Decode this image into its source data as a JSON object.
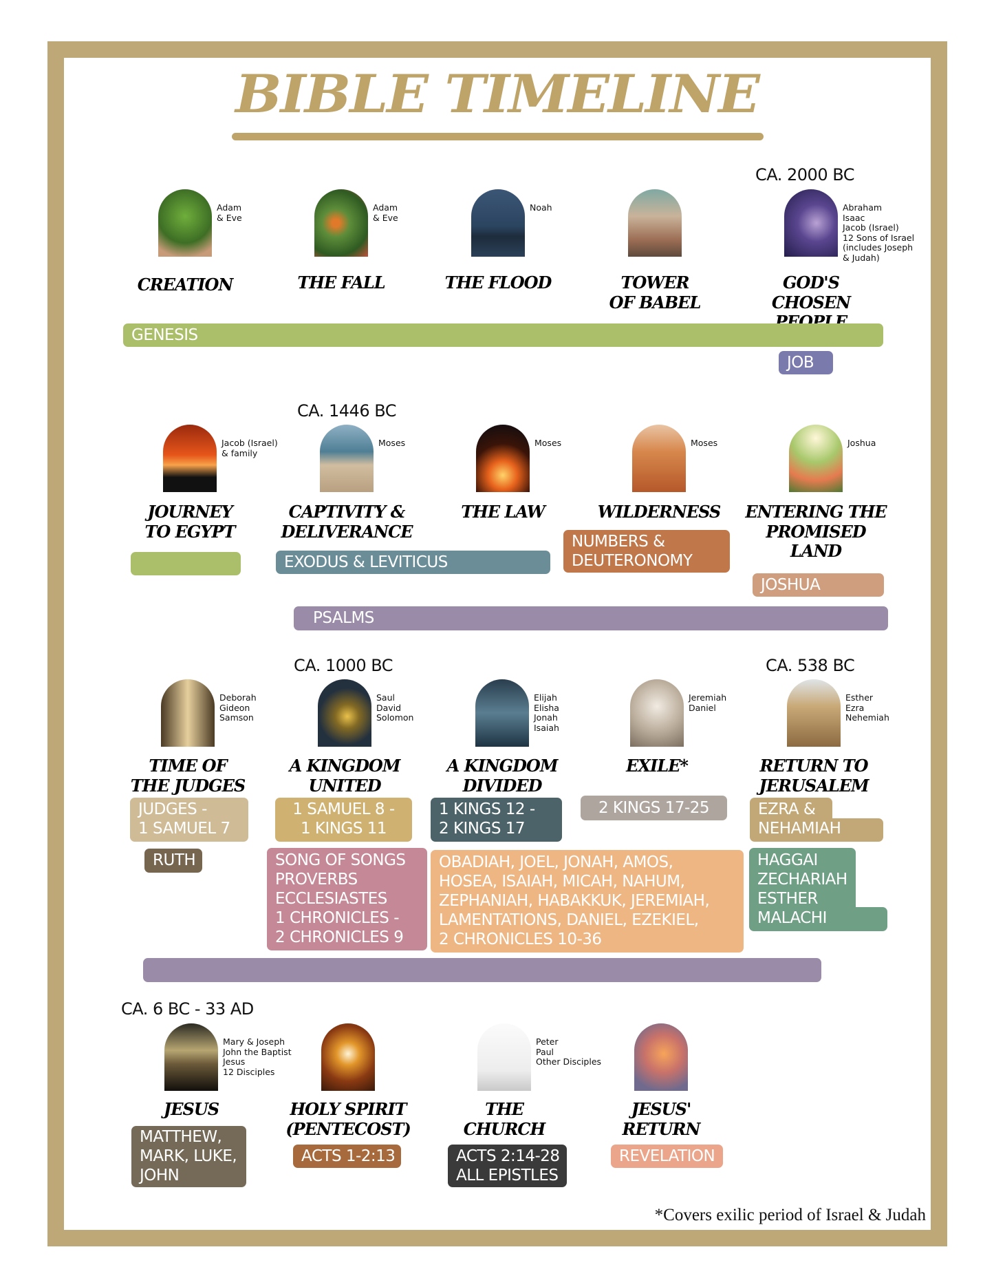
{
  "title": "BIBLE TIMELINE",
  "colors": {
    "frame": "#bfa877",
    "title": "#bfa46a"
  },
  "eras": {
    "e1": "CA. 2000 BC",
    "e2": "CA. 1446 BC",
    "e3": "CA. 1000 BC",
    "e4": "CA. 538 BC",
    "e5": "CA. 6 BC - 33 AD"
  },
  "events": [
    {
      "title": "CREATION",
      "people": "Adam\n& Eve",
      "image": "oak-tree"
    },
    {
      "title": "THE FALL",
      "people": "Adam\n& Eve",
      "image": "fruit-tree"
    },
    {
      "title": "THE FLOOD",
      "people": "Noah",
      "image": "ark-in-rain"
    },
    {
      "title": "TOWER\nOF BABEL",
      "people": "",
      "image": "tower"
    },
    {
      "title": "GOD'S\nCHOSEN\nPEOPLE",
      "people": "Abraham\nIsaac\nJacob (Israel)\n12 Sons of Israel\n(includes Joseph\n& Judah)",
      "image": "starry-sky"
    },
    {
      "title": "JOURNEY\nTO EGYPT",
      "people": "Jacob (Israel)\n& family",
      "image": "camels-sunset"
    },
    {
      "title": "CAPTIVITY &\nDELIVERANCE",
      "people": "Moses",
      "image": "parted-sea"
    },
    {
      "title": "THE LAW",
      "people": "Moses",
      "image": "fire"
    },
    {
      "title": "WILDERNESS",
      "people": "Moses",
      "image": "desert"
    },
    {
      "title": "ENTERING THE\nPROMISED\nLAND",
      "people": "Joshua",
      "image": "peaches"
    },
    {
      "title": "TIME OF\nTHE JUDGES",
      "people": "Deborah\nGideon\nSamson",
      "image": "warrior"
    },
    {
      "title": "A KINGDOM\nUNITED",
      "people": "Saul\nDavid\nSolomon",
      "image": "crown"
    },
    {
      "title": "A KINGDOM\nDIVIDED",
      "people": "Elijah\nElisha\nJonah\nIsaiah",
      "image": "stormy-sea"
    },
    {
      "title": "EXILE*",
      "people": "Jeremiah\nDaniel",
      "image": "smoke"
    },
    {
      "title": "RETURN TO\nJERUSALEM",
      "people": "Esther\nEzra\nNehemiah",
      "image": "stone-wall"
    },
    {
      "title": "JESUS",
      "people": "Mary & Joseph\nJohn the Baptist\nJesus\n12 Disciples",
      "image": "cross"
    },
    {
      "title": "HOLY SPIRIT\n(PENTECOST)",
      "people": "",
      "image": "stained-glass-dove"
    },
    {
      "title": "THE\nCHURCH",
      "people": "Peter\nPaul\nOther Disciples",
      "image": "white-church"
    },
    {
      "title": "JESUS'\nRETURN",
      "people": "",
      "image": "sunset-clouds"
    }
  ],
  "books": {
    "genesis": {
      "label": "GENESIS",
      "color": "#abbf6a"
    },
    "job": {
      "label": "JOB",
      "color": "#7b7aad"
    },
    "egypt": {
      "label": "",
      "color": "#abbf6a"
    },
    "exodus": {
      "label": "EXODUS & LEVITICUS",
      "color": "#6a8d97"
    },
    "numbers": {
      "label": "NUMBERS &\nDEUTERONOMY",
      "color": "#c0774a"
    },
    "joshua": {
      "label": "JOSHUA",
      "color": "#cf9e7e"
    },
    "psalms": {
      "label": "PSALMS",
      "color": "#9a8ba8"
    },
    "judges": {
      "label": "JUDGES -\n1 SAMUEL 7",
      "color": "#cfbb95"
    },
    "samuel": {
      "label": "1 SAMUEL 8 -\n1 KINGS 11",
      "color": "#cfb272"
    },
    "kings": {
      "label": "1 KINGS 12 -\n2 KINGS 17",
      "color": "#4c6469"
    },
    "kings2": {
      "label": "2 KINGS 17-25",
      "color": "#aea59f"
    },
    "ezra": {
      "label": "EZRA &\nNEHAMIAH",
      "color": "#c2a877"
    },
    "ruth": {
      "label": "RUTH",
      "color": "#766650"
    },
    "wisdom": {
      "label": "SONG OF SONGS\nPROVERBS\nECCLESIASTES\n1 CHRONICLES -\n2 CHRONICLES 9",
      "color": "#c58896"
    },
    "prophets": {
      "label": "OBADIAH, JOEL, JONAH, AMOS,\nHOSEA, ISAIAH, MICAH, NAHUM,\nZEPHANIAH, HABAKKUK, JEREMIAH,\nLAMENTATIONS, DANIEL, EZEKIEL,\n2 CHRONICLES 10-36",
      "color": "#edb683"
    },
    "postexile": {
      "label": "HAGGAI\nZECHARIAH\nESTHER\nMALACHI",
      "color": "#6f9f84"
    },
    "psalms2": {
      "label": "",
      "color": "#9a8ba8"
    },
    "gospels": {
      "label": "MATTHEW,\nMARK, LUKE,\nJOHN",
      "color": "#756a57"
    },
    "acts1": {
      "label": "ACTS 1-2:13",
      "color": "#a76a3d"
    },
    "acts2": {
      "label": "ACTS 2:14-28\nALL EPISTLES",
      "color": "#3a3a3a"
    },
    "revelation": {
      "label": "REVELATION",
      "color": "#eba58a"
    }
  },
  "footnote": "*Covers exilic period of Israel & Judah"
}
